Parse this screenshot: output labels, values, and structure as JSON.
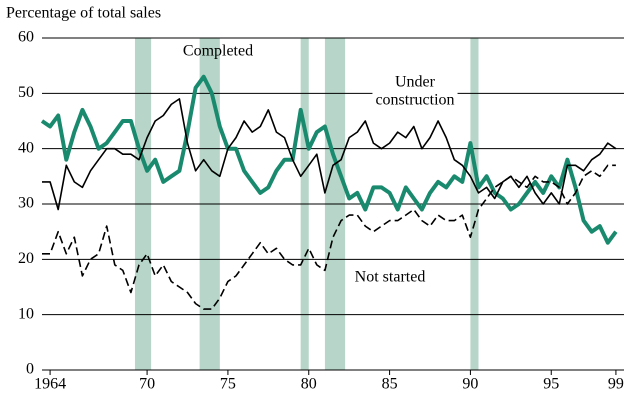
{
  "chart_data": {
    "type": "line",
    "y_axis_label": "Percentage of total sales",
    "x": [
      1964,
      1964.5,
      1965,
      1965.5,
      1966,
      1966.5,
      1967,
      1967.5,
      1968,
      1968.5,
      1969,
      1969.5,
      1970,
      1970.5,
      1971,
      1971.5,
      1972,
      1972.5,
      1973,
      1973.5,
      1974,
      1974.5,
      1975,
      1975.5,
      1976,
      1976.5,
      1977,
      1977.5,
      1978,
      1978.5,
      1979,
      1979.5,
      1980,
      1980.5,
      1981,
      1981.5,
      1982,
      1982.5,
      1983,
      1983.5,
      1984,
      1984.5,
      1985,
      1985.5,
      1986,
      1986.5,
      1987,
      1987.5,
      1988,
      1988.5,
      1989,
      1989.5,
      1990,
      1990.5,
      1991,
      1991.5,
      1992,
      1992.5,
      1993,
      1993.5,
      1994,
      1994.5,
      1995,
      1995.5,
      1996,
      1996.5,
      1997,
      1997.5,
      1998,
      1998.5,
      1999,
      1999.5
    ],
    "series": [
      {
        "name": "Completed",
        "color": "#1a8a6e",
        "width": 4,
        "dashed": false,
        "values": [
          45,
          44,
          46,
          38,
          43,
          47,
          44,
          40,
          41,
          43,
          45,
          45,
          40,
          36,
          38,
          34,
          35,
          36,
          43,
          51,
          53,
          50,
          44,
          40,
          40,
          36,
          34,
          32,
          33,
          36,
          38,
          38,
          47,
          40,
          43,
          44,
          39,
          35,
          31,
          32,
          29,
          33,
          33,
          32,
          29,
          33,
          31,
          29,
          32,
          34,
          33,
          35,
          34,
          41,
          33,
          35,
          32,
          31,
          29,
          30,
          32,
          34,
          32,
          35,
          33,
          38,
          33,
          27,
          25,
          26,
          23,
          25
        ]
      },
      {
        "name": "Under construction",
        "color": "#000000",
        "width": 1.6,
        "dashed": false,
        "values": [
          34,
          34,
          29,
          37,
          34,
          33,
          36,
          38,
          40,
          40,
          39,
          39,
          38,
          42,
          45,
          46,
          48,
          49,
          41,
          36,
          38,
          36,
          35,
          40,
          42,
          45,
          43,
          44,
          47,
          43,
          42,
          38,
          35,
          37,
          39,
          32,
          37,
          38,
          42,
          43,
          45,
          41,
          40,
          41,
          43,
          42,
          44,
          40,
          42,
          45,
          42,
          38,
          37,
          35,
          32,
          33,
          31,
          34,
          35,
          33,
          35,
          32,
          30,
          32,
          30,
          37,
          37,
          36,
          38,
          39,
          41,
          40
        ]
      },
      {
        "name": "Not started",
        "color": "#000000",
        "width": 1.6,
        "dashed": true,
        "values": [
          21,
          21,
          25,
          21,
          24,
          17,
          20,
          21,
          26,
          19,
          18,
          14,
          19,
          21,
          17,
          19,
          16,
          15,
          14,
          12,
          11,
          11,
          13,
          16,
          17,
          19,
          21,
          23,
          21,
          22,
          20,
          19,
          19,
          22,
          19,
          18,
          24,
          27,
          28,
          28,
          26,
          25,
          26,
          27,
          27,
          28,
          29,
          27,
          26,
          28,
          27,
          27,
          28,
          24,
          29,
          31,
          33,
          34,
          35,
          34,
          33,
          35,
          34,
          34,
          33,
          30,
          32,
          35,
          36,
          35,
          37,
          37
        ]
      }
    ],
    "recessions": [
      [
        1969.75,
        1970.75
      ],
      [
        1973.75,
        1975
      ],
      [
        1980,
        1980.5
      ],
      [
        1981.5,
        1982.75
      ],
      [
        1990.5,
        1991
      ]
    ],
    "recession_color": "#b7d5c8",
    "xlim": [
      1964,
      2000
    ],
    "xticks": [
      {
        "value": 1964.5,
        "label": "1964"
      },
      {
        "value": 1970.5,
        "label": "70"
      },
      {
        "value": 1975.5,
        "label": "75"
      },
      {
        "value": 1980.5,
        "label": "80"
      },
      {
        "value": 1985.5,
        "label": "85"
      },
      {
        "value": 1990.5,
        "label": "90"
      },
      {
        "value": 1995.5,
        "label": "95"
      },
      {
        "value": 1999.5,
        "label": "99"
      }
    ],
    "ylim": [
      0,
      60
    ],
    "yticks": [
      0,
      10,
      20,
      30,
      40,
      50,
      60
    ],
    "grid": true,
    "annotations": [
      [
        "Completed"
      ],
      [
        "Under",
        "construction"
      ],
      [
        "Not started"
      ]
    ]
  }
}
